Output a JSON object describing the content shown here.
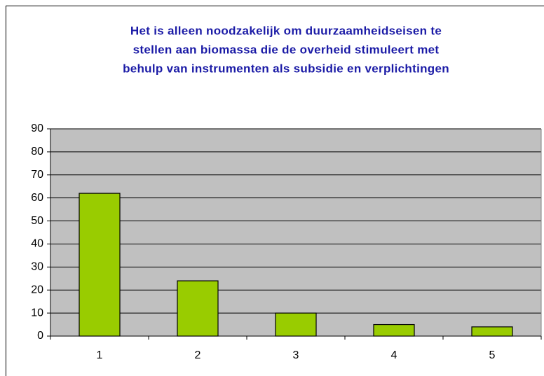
{
  "chart_data": {
    "type": "bar",
    "title": [
      "Het is alleen noodzakelijk om duurzaamheidseisen te",
      "stellen aan biomassa die de overheid stimuleert met",
      "behulp van instrumenten als subsidie en verplichtingen"
    ],
    "categories": [
      "1",
      "2",
      "3",
      "4",
      "5"
    ],
    "values": [
      62,
      24,
      10,
      5,
      4
    ],
    "color": "#99cc00",
    "plot_background": "#c0c0c0",
    "ylim": [
      0,
      90
    ],
    "yticks": [
      0,
      10,
      20,
      30,
      40,
      50,
      60,
      70,
      80,
      90
    ],
    "grid": true
  }
}
